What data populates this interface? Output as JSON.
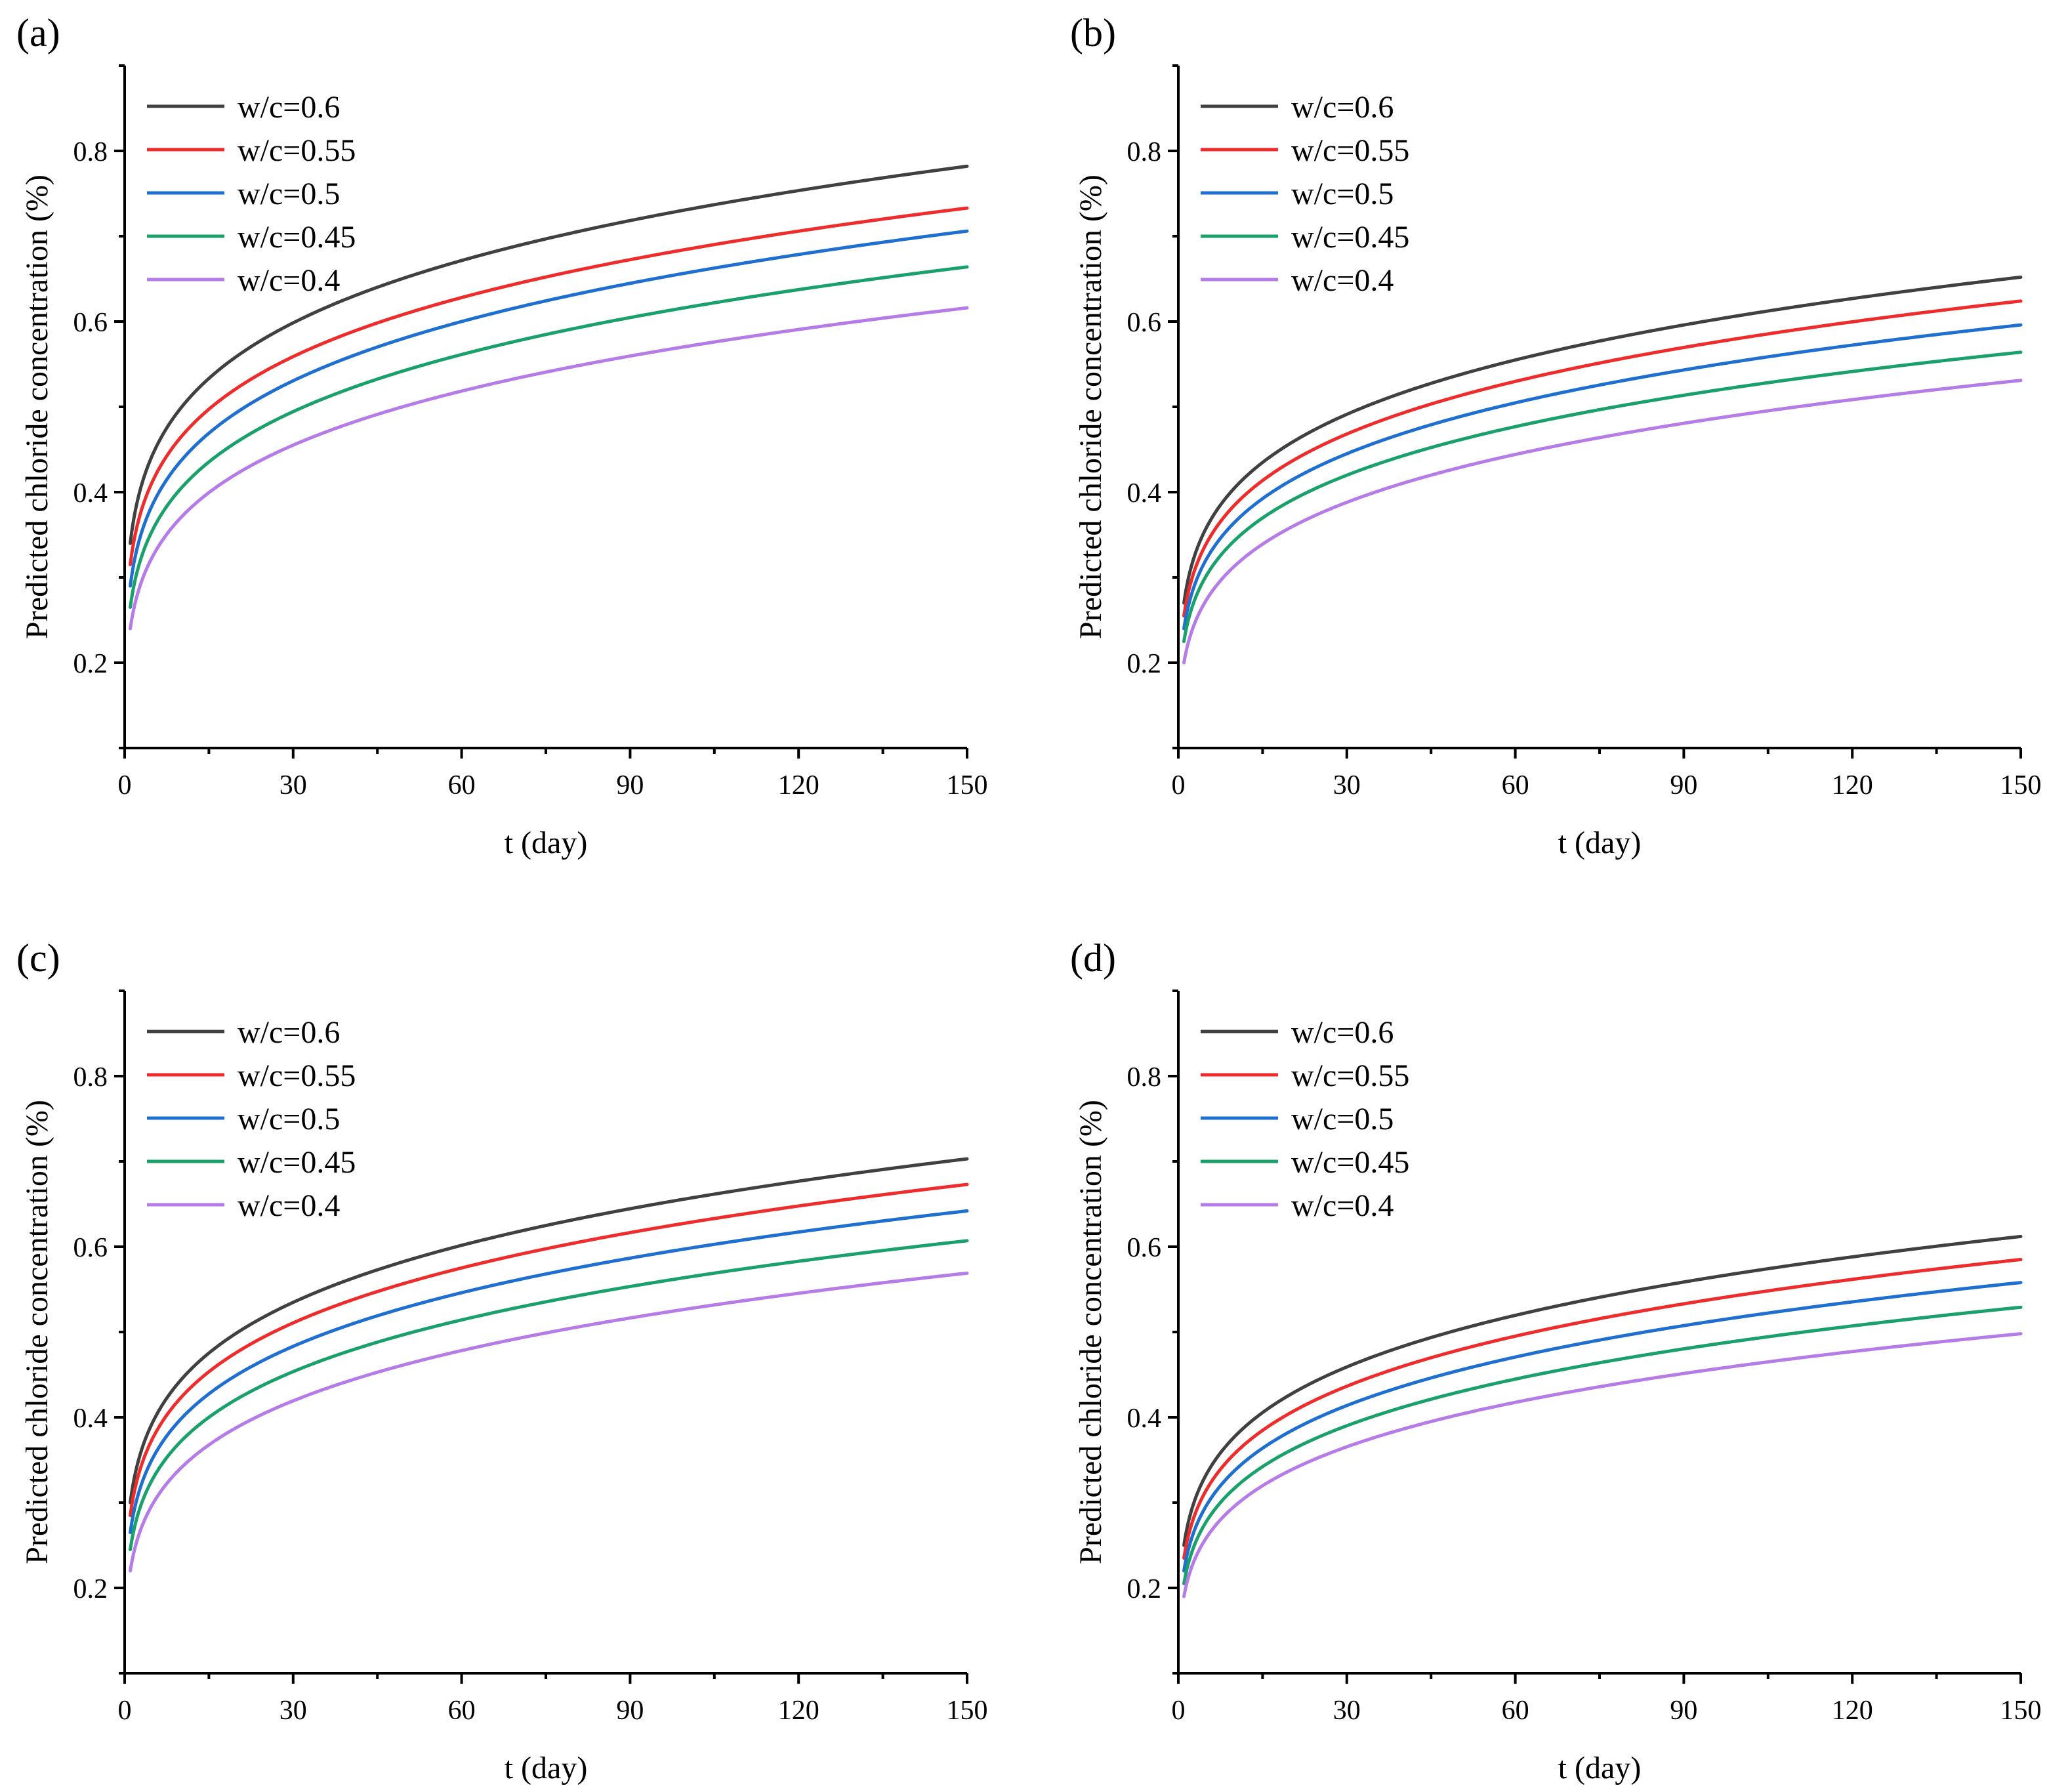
{
  "colors": {
    "w06": "#404040",
    "w055": "#ee2c2c",
    "w05": "#1f6fd0",
    "w045": "#1aa06a",
    "w04": "#b57be6"
  },
  "chart_data": [
    {
      "type": "line",
      "panel_label": "(a)",
      "xlabel": "t (day)",
      "ylabel": "Predicted chloride concentration (%)",
      "xlim": [
        0,
        150
      ],
      "ylim": [
        0.1,
        0.9
      ],
      "x_ticks": [
        "0",
        "30",
        "60",
        "90",
        "120",
        "150"
      ],
      "y_ticks": [
        "0.2",
        "0.4",
        "0.6",
        "0.8"
      ],
      "legend_position": "top-left",
      "series": [
        {
          "name": "w/c=0.6",
          "color": "#404040",
          "x": [
            1,
            150
          ],
          "y": [
            0.34,
            0.782
          ]
        },
        {
          "name": "w/c=0.55",
          "color": "#ee2c2c",
          "x": [
            1,
            150
          ],
          "y": [
            0.315,
            0.733
          ]
        },
        {
          "name": "w/c=0.5",
          "color": "#1f6fd0",
          "x": [
            1,
            150
          ],
          "y": [
            0.29,
            0.706
          ]
        },
        {
          "name": "w/c=0.45",
          "color": "#1aa06a",
          "x": [
            1,
            150
          ],
          "y": [
            0.265,
            0.664
          ]
        },
        {
          "name": "w/c=0.4",
          "color": "#b57be6",
          "x": [
            1,
            150
          ],
          "y": [
            0.24,
            0.616
          ]
        }
      ]
    },
    {
      "type": "line",
      "panel_label": "(b)",
      "xlabel": "t (day)",
      "ylabel": "Predicted chloride concentration (%)",
      "xlim": [
        0,
        150
      ],
      "ylim": [
        0.1,
        0.9
      ],
      "x_ticks": [
        "0",
        "30",
        "60",
        "90",
        "120",
        "150"
      ],
      "y_ticks": [
        "0.2",
        "0.4",
        "0.6",
        "0.8"
      ],
      "legend_position": "top-left",
      "series": [
        {
          "name": "w/c=0.6",
          "color": "#404040",
          "x": [
            1,
            150
          ],
          "y": [
            0.27,
            0.652
          ]
        },
        {
          "name": "w/c=0.55",
          "color": "#ee2c2c",
          "x": [
            1,
            150
          ],
          "y": [
            0.255,
            0.624
          ]
        },
        {
          "name": "w/c=0.5",
          "color": "#1f6fd0",
          "x": [
            1,
            150
          ],
          "y": [
            0.24,
            0.596
          ]
        },
        {
          "name": "w/c=0.45",
          "color": "#1aa06a",
          "x": [
            1,
            150
          ],
          "y": [
            0.225,
            0.564
          ]
        },
        {
          "name": "w/c=0.4",
          "color": "#b57be6",
          "x": [
            1,
            150
          ],
          "y": [
            0.2,
            0.531
          ]
        }
      ]
    },
    {
      "type": "line",
      "panel_label": "(c)",
      "xlabel": "t (day)",
      "ylabel": "Predicted chloride concentration (%)",
      "xlim": [
        0,
        150
      ],
      "ylim": [
        0.1,
        0.9
      ],
      "x_ticks": [
        "0",
        "30",
        "60",
        "90",
        "120",
        "150"
      ],
      "y_ticks": [
        "0.2",
        "0.4",
        "0.6",
        "0.8"
      ],
      "legend_position": "top-left",
      "series": [
        {
          "name": "w/c=0.6",
          "color": "#404040",
          "x": [
            1,
            150
          ],
          "y": [
            0.3,
            0.703
          ]
        },
        {
          "name": "w/c=0.55",
          "color": "#ee2c2c",
          "x": [
            1,
            150
          ],
          "y": [
            0.285,
            0.673
          ]
        },
        {
          "name": "w/c=0.5",
          "color": "#1f6fd0",
          "x": [
            1,
            150
          ],
          "y": [
            0.265,
            0.642
          ]
        },
        {
          "name": "w/c=0.45",
          "color": "#1aa06a",
          "x": [
            1,
            150
          ],
          "y": [
            0.245,
            0.607
          ]
        },
        {
          "name": "w/c=0.4",
          "color": "#b57be6",
          "x": [
            1,
            150
          ],
          "y": [
            0.22,
            0.569
          ]
        }
      ]
    },
    {
      "type": "line",
      "panel_label": "(d)",
      "xlabel": "t (day)",
      "ylabel": "Predicted chloride concentration (%)",
      "xlim": [
        0,
        150
      ],
      "ylim": [
        0.1,
        0.9
      ],
      "x_ticks": [
        "0",
        "30",
        "60",
        "90",
        "120",
        "150"
      ],
      "y_ticks": [
        "0.2",
        "0.4",
        "0.6",
        "0.8"
      ],
      "legend_position": "top-left",
      "series": [
        {
          "name": "w/c=0.6",
          "color": "#404040",
          "x": [
            1,
            150
          ],
          "y": [
            0.25,
            0.612
          ]
        },
        {
          "name": "w/c=0.55",
          "color": "#ee2c2c",
          "x": [
            1,
            150
          ],
          "y": [
            0.235,
            0.585
          ]
        },
        {
          "name": "w/c=0.5",
          "color": "#1f6fd0",
          "x": [
            1,
            150
          ],
          "y": [
            0.22,
            0.558
          ]
        },
        {
          "name": "w/c=0.45",
          "color": "#1aa06a",
          "x": [
            1,
            150
          ],
          "y": [
            0.205,
            0.529
          ]
        },
        {
          "name": "w/c=0.4",
          "color": "#b57be6",
          "x": [
            1,
            150
          ],
          "y": [
            0.19,
            0.498
          ]
        }
      ]
    }
  ]
}
